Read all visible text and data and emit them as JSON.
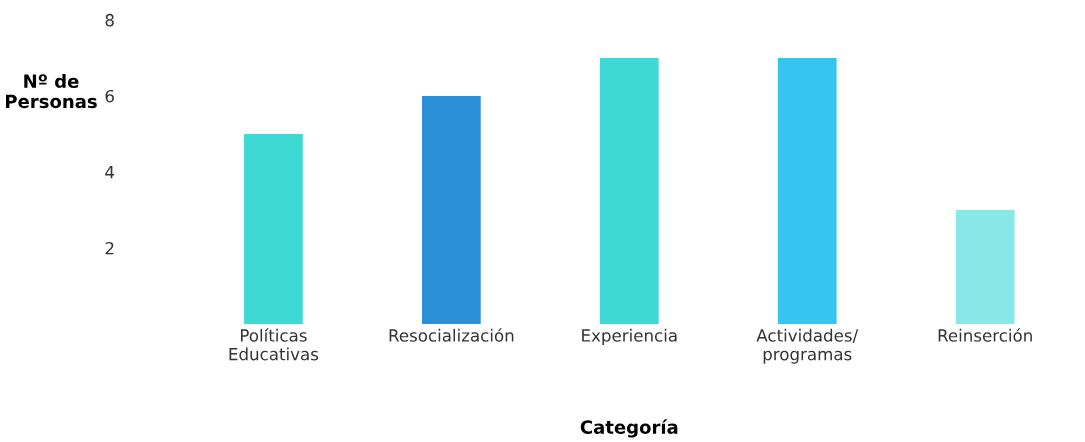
{
  "chart_data": {
    "type": "bar",
    "xlabel": "Categoría",
    "ylabel": "Nº de\nPersonas",
    "categories": [
      "Políticas\nEducativas",
      "Resocialización",
      "Experiencia",
      "Actividades/\nprogramas",
      "Reinserción"
    ],
    "values": [
      5,
      6,
      7,
      7,
      3
    ],
    "colors": [
      "#3dd9d2",
      "#2b8fd6",
      "#3dd9d2",
      "#36c5f0",
      "#88e8e6"
    ],
    "ylim": [
      0,
      8
    ],
    "yticks": [
      2,
      4,
      6,
      8
    ],
    "grid": false
  }
}
